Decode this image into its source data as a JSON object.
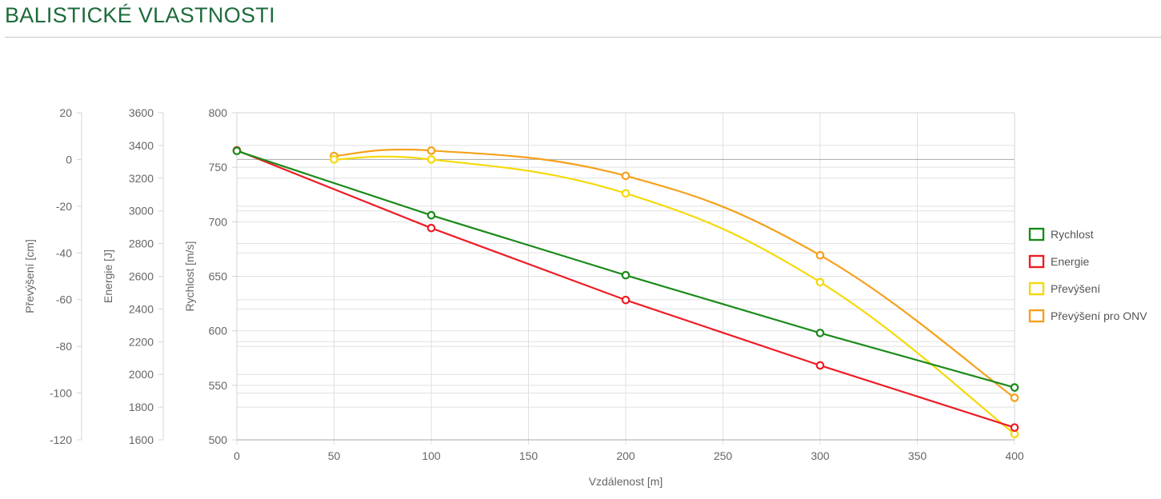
{
  "page": {
    "title": "BALISTICKÉ VLASTNOSTI"
  },
  "chart_data": {
    "type": "line",
    "x": [
      0,
      50,
      100,
      200,
      300,
      400
    ],
    "xlabel": "Vzdálenost [m]",
    "xlim": [
      0,
      400
    ],
    "xticks": [
      0,
      50,
      100,
      150,
      200,
      250,
      300,
      350,
      400
    ],
    "grid": true,
    "legend_position": "right",
    "axes": [
      {
        "id": "prevyseni",
        "label": "Převýšení [cm]",
        "range": [
          -120,
          20
        ],
        "ticks": [
          20,
          0,
          -20,
          -40,
          -60,
          -80,
          -100,
          -120
        ]
      },
      {
        "id": "energie",
        "label": "Energie [J]",
        "range": [
          1600,
          3600
        ],
        "ticks": [
          3600,
          3400,
          3200,
          3000,
          2800,
          2600,
          2400,
          2200,
          2000,
          1800,
          1600
        ]
      },
      {
        "id": "rychlost",
        "label": "Rychlost [m/s]",
        "range": [
          500,
          800
        ],
        "ticks": [
          800,
          750,
          700,
          650,
          600,
          550,
          500
        ]
      }
    ],
    "series": [
      {
        "name": "Rychlost",
        "axis": "rychlost",
        "color": "#1a8a1a",
        "smooth": false,
        "points": [
          [
            0,
            765
          ],
          [
            100,
            706
          ],
          [
            200,
            651
          ],
          [
            300,
            598
          ],
          [
            400,
            548
          ]
        ]
      },
      {
        "name": "Energie",
        "axis": "energie",
        "color": "#ee1c25",
        "smooth": false,
        "points": [
          [
            0,
            3370
          ],
          [
            100,
            2895
          ],
          [
            200,
            2455
          ],
          [
            300,
            2055
          ],
          [
            400,
            1675
          ]
        ]
      },
      {
        "name": "Převýšení",
        "axis": "prevyseni",
        "color": "#f5d90a",
        "smooth": true,
        "points": [
          [
            50,
            0
          ],
          [
            100,
            0
          ],
          [
            200,
            -14.5
          ],
          [
            300,
            -52.5
          ],
          [
            400,
            -117.5
          ]
        ]
      },
      {
        "name": "Převýšení pro ONV",
        "axis": "prevyseni",
        "color": "#f5a11c",
        "smooth": true,
        "points": [
          [
            50,
            1.5
          ],
          [
            100,
            3.8
          ],
          [
            200,
            -7
          ],
          [
            300,
            -41
          ],
          [
            400,
            -102
          ]
        ]
      }
    ]
  }
}
